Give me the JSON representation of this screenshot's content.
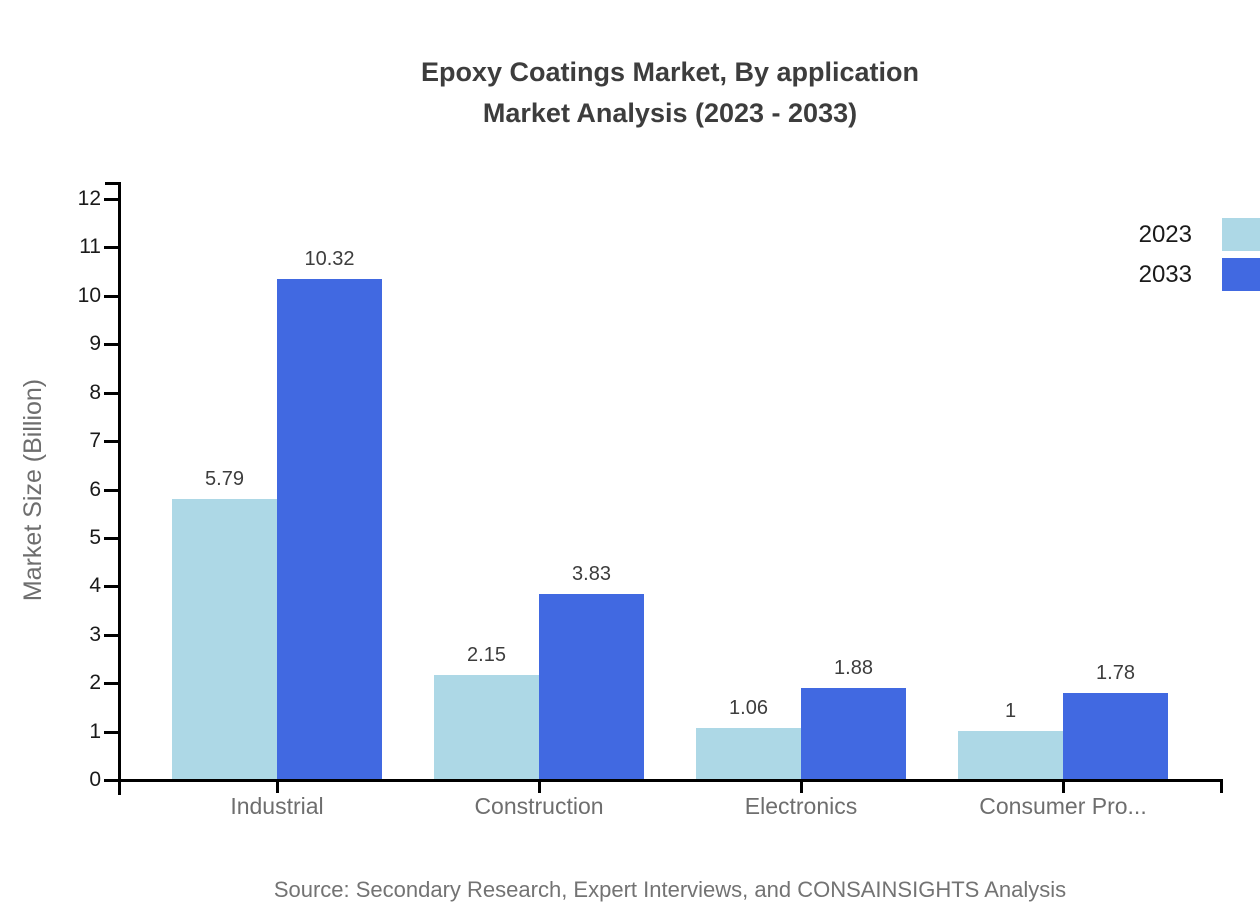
{
  "title": {
    "line1": "Epoxy Coatings Market, By application",
    "line2": "Market Analysis (2023 - 2033)"
  },
  "source": "Source: Secondary Research, Expert Interviews, and CONSAINSIGHTS Analysis",
  "chart_data": {
    "type": "bar",
    "title": "Epoxy Coatings Market, By application Market Analysis (2023 - 2033)",
    "categories": [
      "Industrial",
      "Construction",
      "Electronics",
      "Consumer Pro..."
    ],
    "series": [
      {
        "name": "2023",
        "color": "#ADD8E6",
        "values": [
          5.79,
          2.15,
          1.06,
          1
        ]
      },
      {
        "name": "2033",
        "color": "#4169E1",
        "values": [
          10.32,
          3.83,
          1.88,
          1.78
        ]
      }
    ],
    "value_labels": [
      [
        "5.79",
        "2.15",
        "1.06",
        "1"
      ],
      [
        "10.32",
        "3.83",
        "1.88",
        "1.78"
      ]
    ],
    "xlabel": "",
    "ylabel": "Market Size (Billion)",
    "ylim": [
      0,
      12
    ],
    "ytick_step": 1,
    "grid": false,
    "legend_position": "top-right",
    "colors": {
      "axis": "#000000",
      "tick_label": "#1a1a1a",
      "category_label": "#6e6e6e",
      "value_label": "#3d3d3d",
      "title": "#3d3d3d",
      "source": "#737373"
    }
  }
}
